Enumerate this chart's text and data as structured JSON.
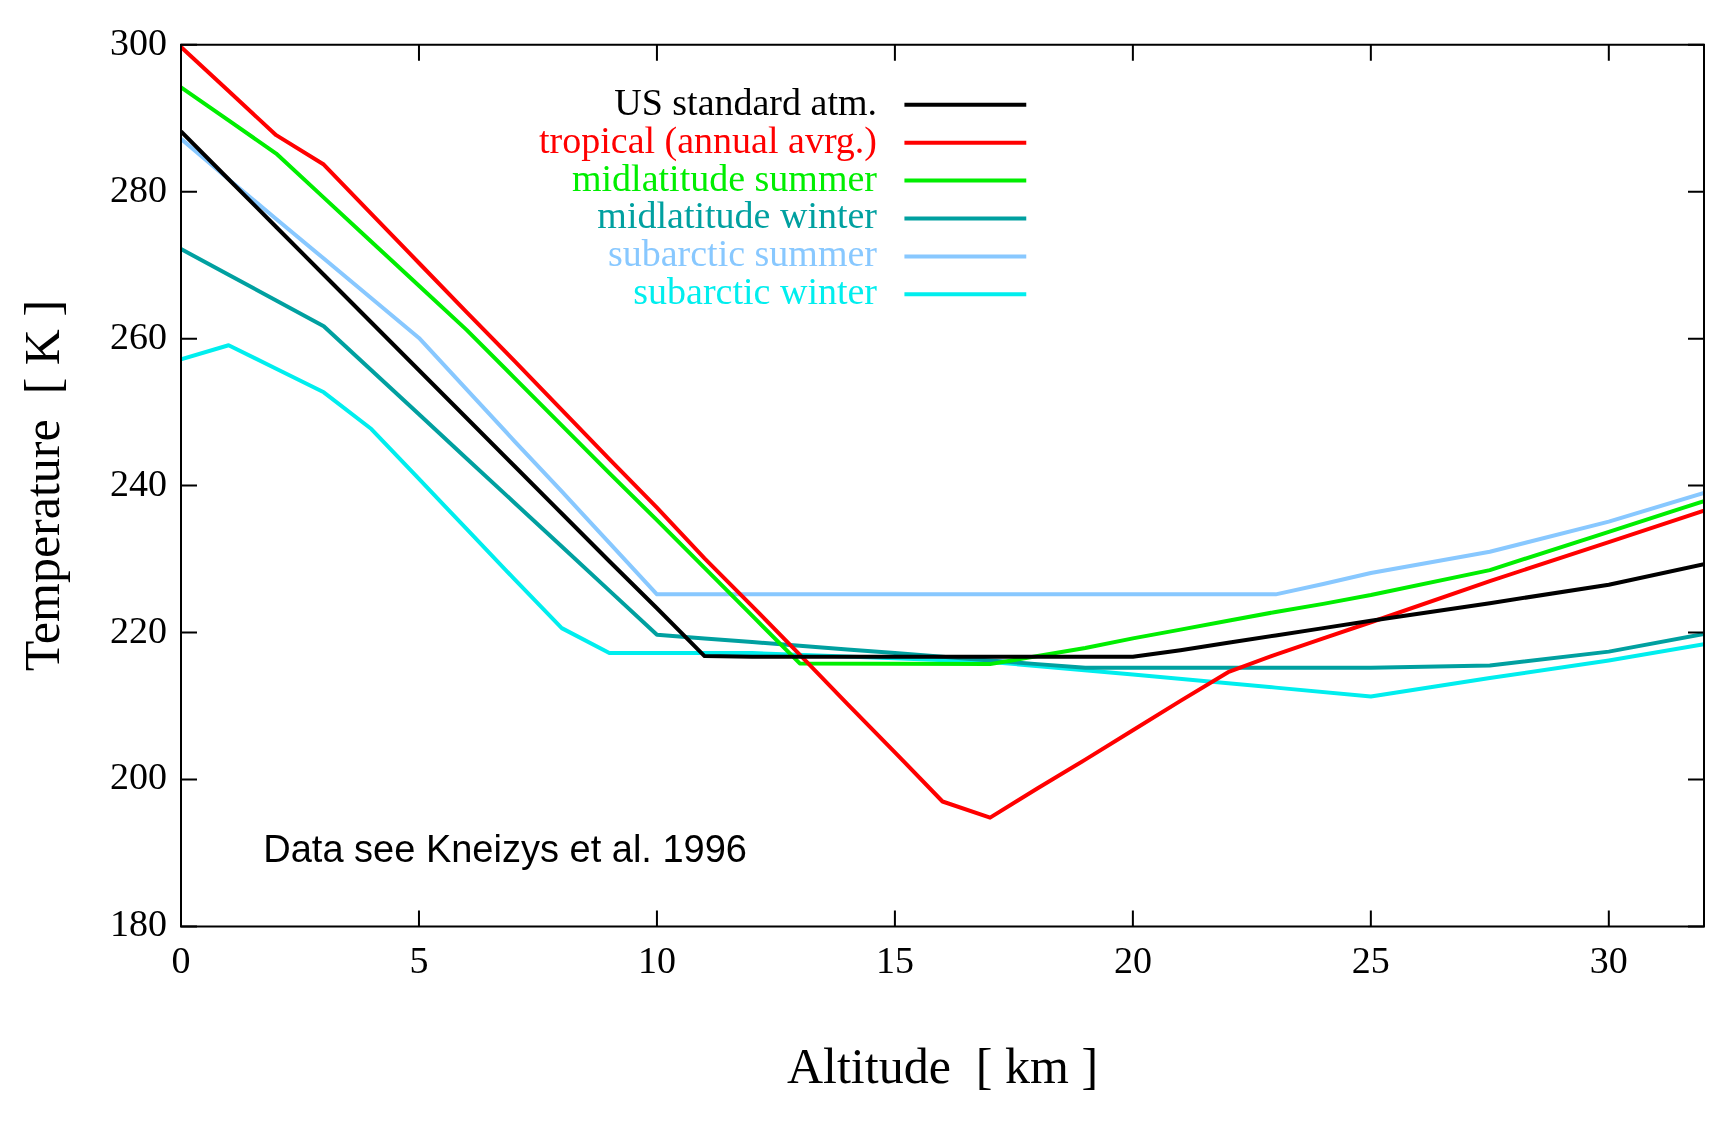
{
  "chart_data": {
    "type": "line",
    "xlabel": "Altitude  [ km ]",
    "ylabel": "Temperature  [ K ]",
    "xlim": [
      0,
      32
    ],
    "xticks": [
      0,
      5,
      10,
      15,
      20,
      25,
      30
    ],
    "ylim": [
      180,
      300
    ],
    "yticks": [
      180,
      200,
      220,
      240,
      260,
      280,
      300
    ],
    "legend": "top",
    "marker": "none",
    "line_style": "solid",
    "annotations": [
      "Data see Kneizys et al. 1996"
    ],
    "series": [
      {
        "name": "US standard atm.",
        "color": "#000000",
        "x": [
          0,
          1,
          2,
          3,
          4,
          5,
          6,
          7,
          8,
          9,
          10,
          11,
          12,
          20,
          21,
          22,
          23,
          24,
          25,
          27.5,
          30,
          32
        ],
        "values": [
          288.2,
          281.7,
          275.2,
          268.7,
          262.2,
          255.7,
          249.2,
          242.7,
          236.2,
          229.7,
          223.3,
          216.8,
          216.7,
          216.7,
          217.6,
          218.6,
          219.6,
          220.6,
          221.6,
          224.0,
          226.5,
          229.3
        ]
      },
      {
        "name": "tropical (annual avrg.)",
        "color": "#ff0000",
        "x": [
          0,
          1,
          2,
          3,
          4,
          5,
          6,
          7,
          8,
          9,
          10,
          11,
          12,
          13,
          14,
          15,
          16,
          17,
          18,
          19,
          20,
          21,
          22,
          23,
          24,
          25,
          27.5,
          30,
          32
        ],
        "values": [
          299.7,
          293.7,
          287.7,
          283.7,
          277.0,
          270.3,
          263.6,
          257.0,
          250.3,
          243.6,
          237.0,
          230.1,
          223.6,
          217.0,
          210.3,
          203.7,
          197.0,
          194.8,
          198.8,
          202.7,
          206.7,
          210.7,
          214.6,
          217.0,
          219.2,
          221.4,
          227.0,
          232.3,
          236.6
        ]
      },
      {
        "name": "midlatitude summer",
        "color": "#00ee00",
        "x": [
          0,
          1,
          2,
          3,
          4,
          5,
          6,
          7,
          8,
          9,
          10,
          11,
          12,
          13,
          17,
          18,
          19,
          20,
          21,
          22,
          23,
          24,
          25,
          27.5,
          30,
          32
        ],
        "values": [
          294.2,
          289.7,
          285.2,
          279.2,
          273.2,
          267.2,
          261.2,
          254.7,
          248.2,
          241.7,
          235.3,
          228.8,
          222.3,
          215.8,
          215.7,
          216.8,
          217.9,
          219.2,
          220.4,
          221.6,
          222.8,
          223.9,
          225.1,
          228.5,
          233.7,
          237.9
        ]
      },
      {
        "name": "midlatitude winter",
        "color": "#00a0a0",
        "x": [
          0,
          1,
          2,
          3,
          4,
          5,
          6,
          7,
          8,
          9,
          10,
          11,
          12,
          13,
          14,
          15,
          16,
          17,
          18,
          19,
          25,
          27.5,
          30,
          32
        ],
        "values": [
          272.2,
          268.7,
          265.2,
          261.7,
          255.7,
          249.7,
          243.7,
          237.7,
          231.7,
          225.7,
          219.7,
          219.2,
          218.7,
          218.2,
          217.7,
          217.2,
          216.7,
          216.2,
          215.7,
          215.2,
          215.2,
          215.5,
          217.4,
          219.8
        ]
      },
      {
        "name": "subarctic summer",
        "color": "#88c8ff",
        "x": [
          0,
          1,
          2,
          3,
          4,
          5,
          6,
          7,
          8,
          9,
          10,
          23,
          24,
          25,
          27.5,
          30,
          32
        ],
        "values": [
          287.2,
          281.7,
          276.3,
          270.9,
          265.5,
          260.1,
          253.1,
          246.1,
          239.2,
          232.2,
          225.2,
          225.2,
          226.6,
          228.1,
          231.0,
          235.1,
          239.0
        ]
      },
      {
        "name": "subarctic winter",
        "color": "#00eeee",
        "x": [
          0,
          1,
          2,
          3,
          4,
          5,
          6,
          7,
          8,
          9,
          12,
          15,
          17,
          20,
          23,
          25,
          27.5,
          30,
          32
        ],
        "values": [
          257.2,
          259.1,
          255.9,
          252.7,
          247.7,
          240.9,
          234.1,
          227.3,
          220.6,
          217.2,
          217.2,
          216.5,
          216.0,
          214.3,
          212.5,
          211.3,
          213.8,
          216.2,
          218.4
        ]
      }
    ]
  }
}
